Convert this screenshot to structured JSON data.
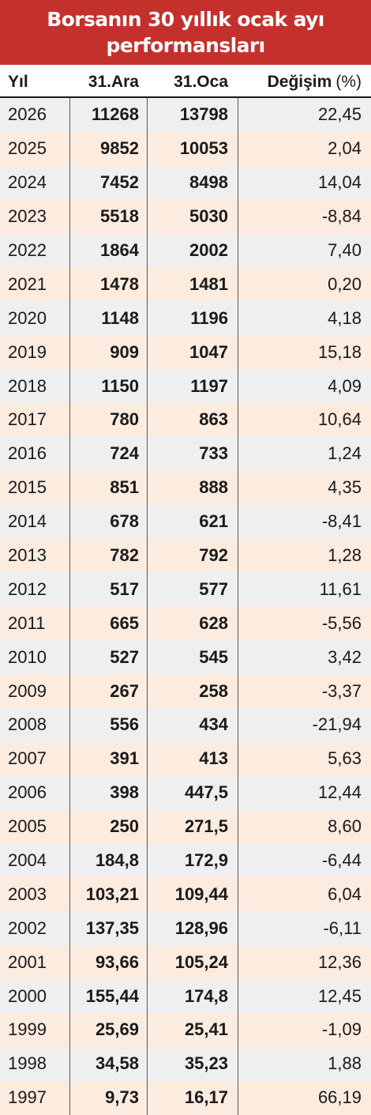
{
  "title": {
    "line1": "Borsanın 30 yıllık ocak ayı",
    "line2": "performansları"
  },
  "colors": {
    "title_background": "#c4312c",
    "row_gray": "#efeff0",
    "row_peach": "#fcebdf"
  },
  "chart_data": {
    "type": "table",
    "title": "Borsanın 30 yıllık ocak ayı performansları",
    "columns": [
      "Yıl",
      "31.Ara",
      "31.Oca",
      "Değişim",
      "(%)"
    ],
    "rows": [
      [
        "2026",
        "11268",
        "13798",
        "22,45"
      ],
      [
        "2025",
        "9852",
        "10053",
        "2,04"
      ],
      [
        "2024",
        "7452",
        "8498",
        "14,04"
      ],
      [
        "2023",
        "5518",
        "5030",
        "-8,84"
      ],
      [
        "2022",
        "1864",
        "2002",
        "7,40"
      ],
      [
        "2021",
        "1478",
        "1481",
        "0,20"
      ],
      [
        "2020",
        "1148",
        "1196",
        "4,18"
      ],
      [
        "2019",
        "909",
        "1047",
        "15,18"
      ],
      [
        "2018",
        "1150",
        "1197",
        "4,09"
      ],
      [
        "2017",
        "780",
        "863",
        "10,64"
      ],
      [
        "2016",
        "724",
        "733",
        "1,24"
      ],
      [
        "2015",
        "851",
        "888",
        "4,35"
      ],
      [
        "2014",
        "678",
        "621",
        "-8,41"
      ],
      [
        "2013",
        "782",
        "792",
        "1,28"
      ],
      [
        "2012",
        "517",
        "577",
        "11,61"
      ],
      [
        "2011",
        "665",
        "628",
        "-5,56"
      ],
      [
        "2010",
        "527",
        "545",
        "3,42"
      ],
      [
        "2009",
        "267",
        "258",
        "-3,37"
      ],
      [
        "2008",
        "556",
        "434",
        "-21,94"
      ],
      [
        "2007",
        "391",
        "413",
        "5,63"
      ],
      [
        "2006",
        "398",
        "447,5",
        "12,44"
      ],
      [
        "2005",
        "250",
        "271,5",
        "8,60"
      ],
      [
        "2004",
        "184,8",
        "172,9",
        "-6,44"
      ],
      [
        "2003",
        "103,21",
        "109,44",
        "6,04"
      ],
      [
        "2002",
        "137,35",
        "128,96",
        "-6,11"
      ],
      [
        "2001",
        "93,66",
        "105,24",
        "12,36"
      ],
      [
        "2000",
        "155,44",
        "174,8",
        "12,45"
      ],
      [
        "1999",
        "25,69",
        "25,41",
        "-1,09"
      ],
      [
        "1998",
        "34,58",
        "35,23",
        "1,88"
      ],
      [
        "1997",
        "9,73",
        "16,17",
        "66,19"
      ]
    ]
  }
}
